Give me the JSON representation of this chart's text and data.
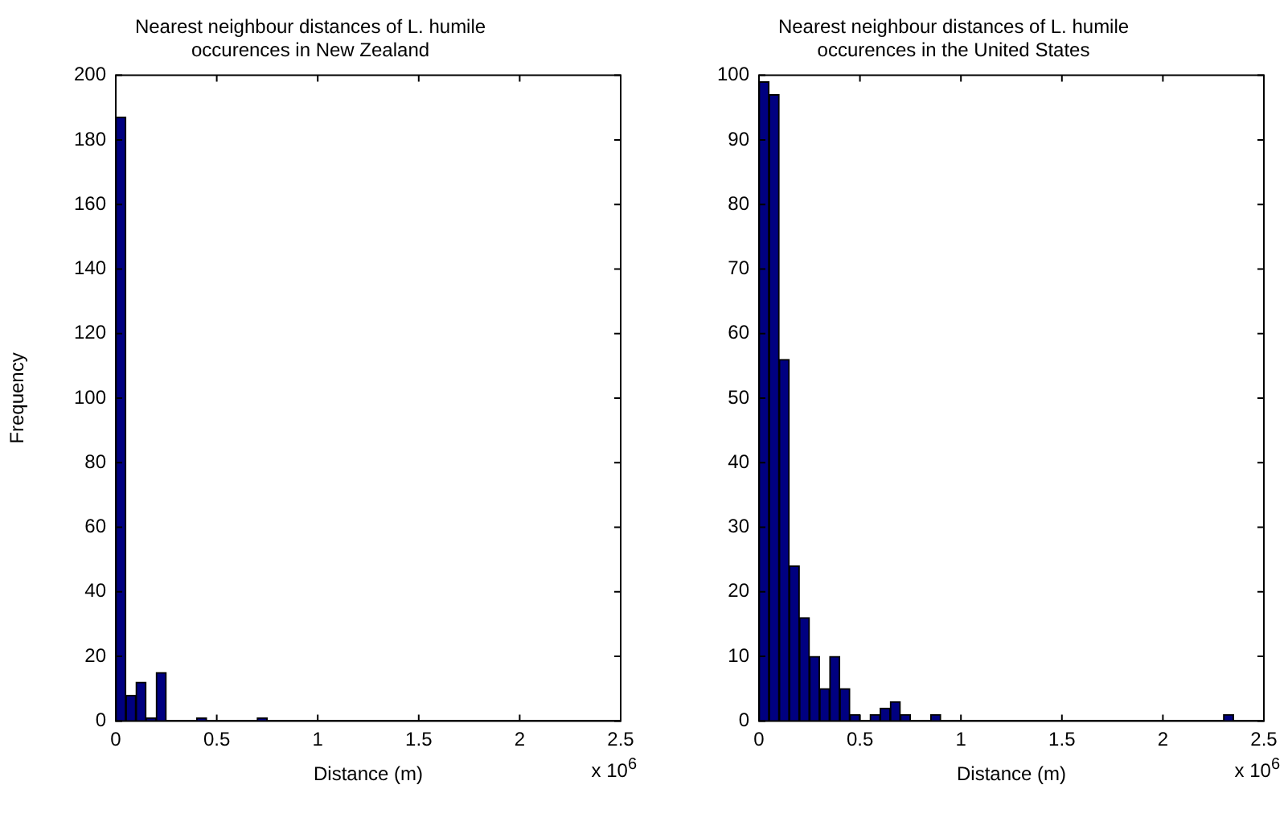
{
  "chart_data": [
    {
      "type": "histogram",
      "title": "Nearest neighbour distances of L. humile occurences in New Zealand",
      "xlabel": "Distance (m)",
      "ylabel": "Frequency",
      "color": "#000080",
      "bins": [
        0,
        0.05,
        0.1,
        0.15,
        0.2,
        0.25,
        0.3,
        0.35,
        0.4,
        0.45,
        0.5,
        0.55,
        0.6,
        0.65,
        0.7,
        0.75
      ],
      "values": [
        187,
        8,
        12,
        1,
        15,
        0,
        0,
        0,
        1,
        0,
        0,
        0,
        0,
        0,
        1
      ],
      "xlim": [
        0,
        2.5
      ],
      "xticks": [
        0,
        0.5,
        1,
        1.5,
        2,
        2.5
      ],
      "ylim": [
        0,
        200
      ],
      "yticks": [
        0,
        20,
        40,
        60,
        80,
        100,
        120,
        140,
        160,
        180,
        200
      ],
      "grid": false,
      "annotations": [
        "x 10$^{6}$"
      ]
    },
    {
      "type": "histogram",
      "title": "Nearest neighbour distances of L. humile occurences in the United States",
      "xlabel": "Distance (m)",
      "color": "#000080",
      "bins": [
        0,
        0.05,
        0.1,
        0.15,
        0.2,
        0.25,
        0.3,
        0.35,
        0.4,
        0.45,
        0.5,
        0.55,
        0.6,
        0.65,
        0.7,
        0.75,
        0.8,
        0.85,
        0.9,
        0.95,
        1,
        1.05,
        1.1,
        1.15,
        1.2,
        1.25,
        1.3,
        1.35,
        1.4,
        1.45,
        1.5,
        1.55,
        1.6,
        1.65,
        1.7,
        1.75,
        1.8,
        1.85,
        1.9,
        1.95,
        2,
        2.05,
        2.1,
        2.15,
        2.2,
        2.25,
        2.3,
        2.35
      ],
      "values": [
        99,
        97,
        56,
        24,
        16,
        10,
        5,
        10,
        5,
        1,
        0,
        1,
        2,
        3,
        1,
        0,
        0,
        1,
        0,
        0,
        0,
        0,
        0,
        0,
        0,
        0,
        0,
        0,
        0,
        0,
        0,
        0,
        0,
        0,
        0,
        0,
        0,
        0,
        0,
        0,
        0,
        0,
        0,
        0,
        0,
        0,
        1
      ],
      "xlim": [
        0,
        2.5
      ],
      "xticks": [
        0,
        0.5,
        1,
        1.5,
        2,
        2.5
      ],
      "ylim": [
        0,
        100
      ],
      "yticks": [
        0,
        10,
        20,
        30,
        40,
        50,
        60,
        70,
        80,
        90,
        100
      ],
      "grid": false,
      "annotations": [
        "x 10$^{6}$"
      ]
    }
  ]
}
